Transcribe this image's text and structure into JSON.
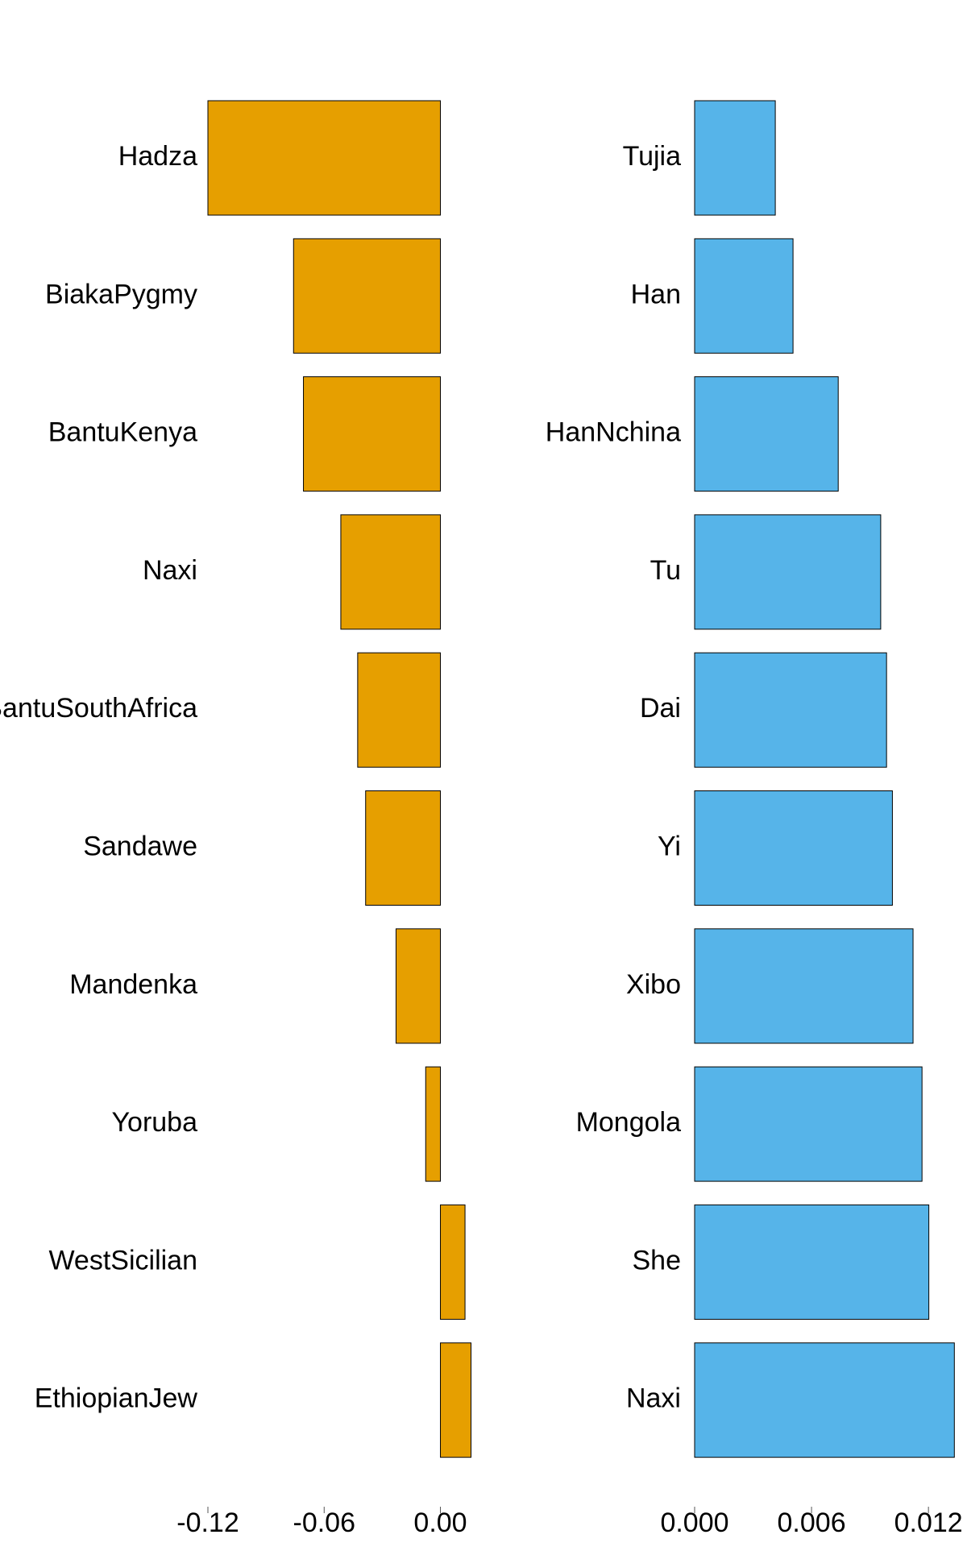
{
  "chart_data": [
    {
      "type": "barh",
      "categories": [
        "Hadza",
        "BiakaPygmy",
        "BantuKenya",
        "Naxi",
        "BantuSouthAfrica",
        "Sandawe",
        "Mandenka",
        "Yoruba",
        "WestSicilian",
        "EthiopianJew"
      ],
      "values": [
        -0.12,
        -0.0758,
        -0.0707,
        -0.0514,
        -0.0427,
        -0.0386,
        -0.0229,
        -0.0076,
        0.0127,
        0.0158
      ],
      "color": "#e69f00",
      "xlim": [
        -0.12,
        0.016
      ],
      "xticks": [
        -0.12,
        -0.06,
        {
          "value": 0,
          "label": "0.00"
        }
      ]
    },
    {
      "type": "barh",
      "categories": [
        "Tujia",
        "Han",
        "HanNchina",
        "Tu",
        "Dai",
        "Yi",
        "Xibo",
        "Mongola",
        "She",
        "Naxi"
      ],
      "values": [
        0.00414,
        0.00505,
        0.00737,
        0.00955,
        0.00985,
        0.01015,
        0.01121,
        0.01167,
        0.01202,
        0.01333
      ],
      "color": "#56b4e9",
      "xlim": [
        0,
        0.0134
      ],
      "xticks": [
        {
          "value": 0,
          "label": "0.000"
        },
        {
          "value": 0.006,
          "label": "0.006"
        },
        {
          "value": 0.012,
          "label": "0.012"
        }
      ]
    }
  ]
}
